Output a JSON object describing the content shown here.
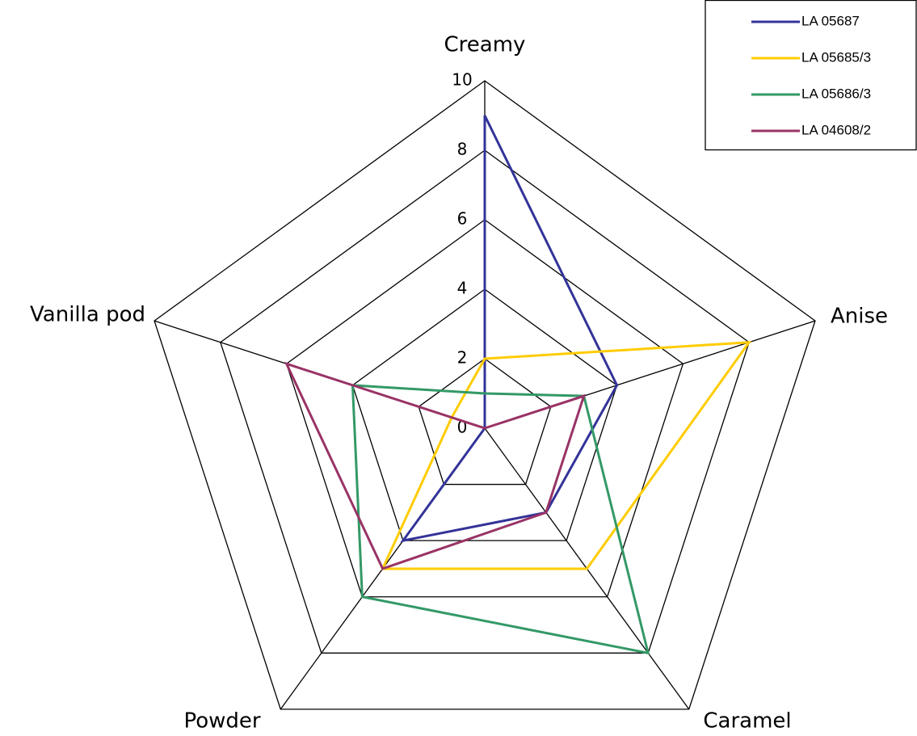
{
  "chart_data": {
    "type": "radar",
    "categories": [
      "Creamy",
      "Anise",
      "Caramel",
      "Powder",
      "Vanilla pod"
    ],
    "ylim": [
      0,
      10
    ],
    "yticks": [
      0,
      2,
      4,
      6,
      8,
      10
    ],
    "grid": true,
    "legend": "upper right",
    "series": [
      {
        "name": "LA 05687",
        "color": "#333399",
        "values": [
          9,
          4,
          3,
          4,
          0
        ]
      },
      {
        "name": "LA 05685/3",
        "color": "#ffcc00",
        "values": [
          2,
          8,
          5,
          5,
          1
        ]
      },
      {
        "name": "LA 05686/3",
        "color": "#339966",
        "values": [
          1,
          3,
          8,
          6,
          4
        ]
      },
      {
        "name": "LA 04608/2",
        "color": "#993366",
        "values": [
          0,
          3,
          3,
          5,
          6
        ]
      }
    ]
  }
}
